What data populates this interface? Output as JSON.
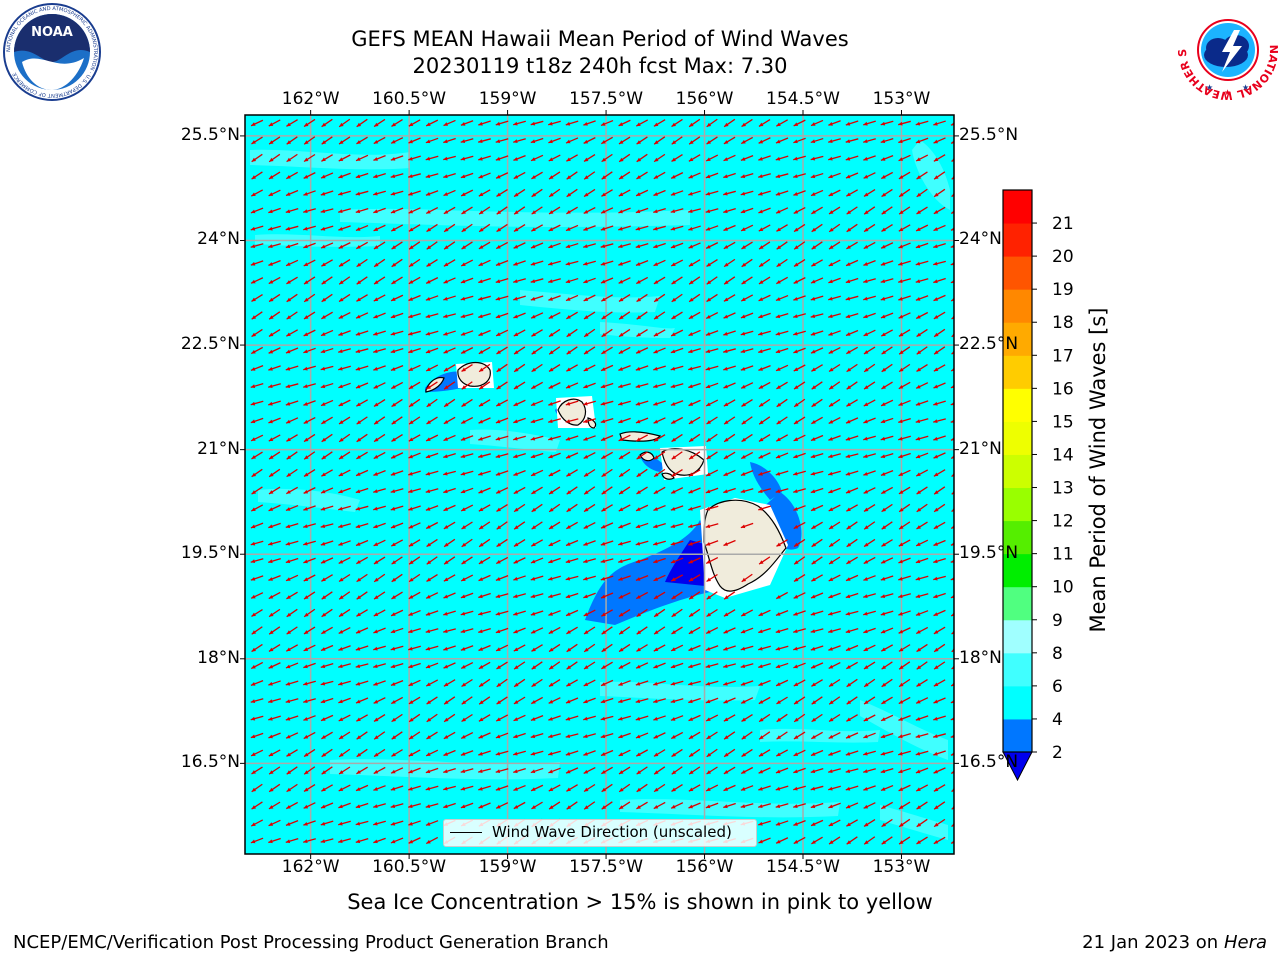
{
  "header": {
    "title_line1": "GEFS MEAN Hawaii Mean Period of Wind Waves",
    "title_line2": "20230119 t18z 240h fcst   Max: 7.30"
  },
  "logos": {
    "left": {
      "name": "noaa-logo",
      "text": "NOAA",
      "ring_text": "NATIONAL OCEANIC AND ATMOSPHERIC ADMINISTRATION · U.S. DEPARTMENT OF COMMERCE"
    },
    "right": {
      "name": "nws-logo",
      "ring_text": "NATIONAL WEATHER SERVICE"
    }
  },
  "map": {
    "lon_labels": [
      "162°W",
      "160.5°W",
      "159°W",
      "157.5°W",
      "156°W",
      "154.5°W",
      "153°W"
    ],
    "lat_labels": [
      "25.5°N",
      "24°N",
      "22.5°N",
      "21°N",
      "19.5°N",
      "18°N",
      "16.5°N"
    ],
    "lon_values": [
      -162,
      -160.5,
      -159,
      -157.5,
      -156,
      -154.5,
      -153
    ],
    "lat_values": [
      25.5,
      24,
      22.5,
      21,
      19.5,
      18,
      16.5
    ],
    "lon_range": [
      -163.0,
      -152.2
    ],
    "lat_range": [
      15.2,
      25.8
    ],
    "ocean_color": "#00ffff",
    "light_band_color": "#40ffff",
    "land_color": "#f0ecdc",
    "arrow_color": "#dd0000",
    "grid_color": "#aaaaaa",
    "arrow_direction": "toward southwest",
    "legend_label": "Wind Wave Direction (unscaled)"
  },
  "colorbar": {
    "label": "Mean Period of Wind Waves [s]",
    "ticks": [
      "2",
      "4",
      "6",
      "8",
      "9",
      "10",
      "11",
      "12",
      "13",
      "14",
      "15",
      "16",
      "17",
      "18",
      "19",
      "20",
      "21"
    ],
    "colors": [
      "#0077ff",
      "#00ffff",
      "#40ffff",
      "#a0ffff",
      "#50ff80",
      "#00ee00",
      "#55ee00",
      "#99ff00",
      "#ccff00",
      "#eeff00",
      "#ffff00",
      "#ffcc00",
      "#ffaa00",
      "#ff8800",
      "#ff5500",
      "#ff2200",
      "#ff0000"
    ],
    "under_color": "#0000ee",
    "extend": "min"
  },
  "footer": {
    "ice_note": "Sea Ice Concentration > 15% is shown in pink to yellow",
    "branch": "NCEP/EMC/Verification Post Processing Product Generation Branch",
    "date": "21 Jan 2023 on ",
    "host": "Hera"
  }
}
